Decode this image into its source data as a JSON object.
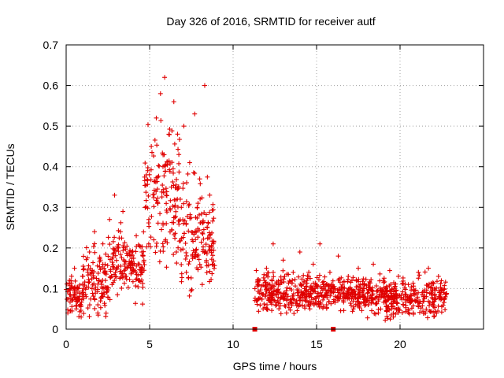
{
  "chart_data": {
    "type": "scatter",
    "title": "Day 326 of 2016, SRMTID for receiver autf",
    "xlabel": "GPS time / hours",
    "ylabel": "SRMTID / TECUs",
    "xlim": [
      0,
      25
    ],
    "ylim": [
      0,
      0.7
    ],
    "xticks": [
      0,
      5,
      10,
      15,
      20
    ],
    "yticks": [
      0,
      0.1,
      0.2,
      0.3,
      0.4,
      0.5,
      0.6,
      0.7
    ],
    "xtick_labels": [
      "0",
      "5",
      "10",
      "15",
      "20"
    ],
    "ytick_labels": [
      "0",
      "0.1",
      "0.2",
      "0.3",
      "0.4",
      "0.5",
      "0.6",
      "0.7"
    ],
    "grid": true,
    "marker": "plus",
    "series": [
      {
        "name": "SRMTID",
        "color": "#e00000",
        "segments": [
          {
            "x_range": [
              0.0,
              1.0
            ],
            "y_median": 0.08,
            "y_spread": 0.04
          },
          {
            "x_range": [
              1.0,
              2.5
            ],
            "y_median": 0.12,
            "y_spread": 0.07
          },
          {
            "x_range": [
              2.5,
              4.7
            ],
            "y_median": 0.16,
            "y_spread": 0.07
          },
          {
            "x_range": [
              4.7,
              6.8
            ],
            "y_median": 0.33,
            "y_spread": 0.15
          },
          {
            "x_range": [
              6.8,
              8.9
            ],
            "y_median": 0.22,
            "y_spread": 0.12
          },
          {
            "x_range": [
              11.3,
              14.5
            ],
            "y_median": 0.09,
            "y_spread": 0.04
          },
          {
            "x_range": [
              14.5,
              18.0
            ],
            "y_median": 0.09,
            "y_spread": 0.04
          },
          {
            "x_range": [
              18.0,
              22.8
            ],
            "y_median": 0.08,
            "y_spread": 0.04
          }
        ],
        "points": [
          [
            0.1,
            0.04
          ],
          [
            0.2,
            0.12
          ],
          [
            0.35,
            0.07
          ],
          [
            0.5,
            0.15
          ],
          [
            0.6,
            0.05
          ],
          [
            0.75,
            0.1
          ],
          [
            0.9,
            0.03
          ],
          [
            1.0,
            0.13
          ],
          [
            1.2,
            0.08
          ],
          [
            1.4,
            0.19
          ],
          [
            1.55,
            0.1
          ],
          [
            1.7,
            0.24
          ],
          [
            1.9,
            0.06
          ],
          [
            2.05,
            0.17
          ],
          [
            2.2,
            0.21
          ],
          [
            2.35,
            0.12
          ],
          [
            2.6,
            0.27
          ],
          [
            2.75,
            0.11
          ],
          [
            2.9,
            0.33
          ],
          [
            3.05,
            0.15
          ],
          [
            3.25,
            0.24
          ],
          [
            3.4,
            0.29
          ],
          [
            3.6,
            0.13
          ],
          [
            3.8,
            0.19
          ],
          [
            4.0,
            0.16
          ],
          [
            4.2,
            0.23
          ],
          [
            4.4,
            0.12
          ],
          [
            4.6,
            0.18
          ],
          [
            4.8,
            0.38
          ],
          [
            4.95,
            0.27
          ],
          [
            5.1,
            0.45
          ],
          [
            5.25,
            0.22
          ],
          [
            5.4,
            0.52
          ],
          [
            5.5,
            0.31
          ],
          [
            5.65,
            0.58
          ],
          [
            5.8,
            0.4
          ],
          [
            5.9,
            0.62
          ],
          [
            6.0,
            0.26
          ],
          [
            6.15,
            0.48
          ],
          [
            6.3,
            0.35
          ],
          [
            6.45,
            0.56
          ],
          [
            6.6,
            0.19
          ],
          [
            6.75,
            0.43
          ],
          [
            6.9,
            0.3
          ],
          [
            7.05,
            0.5
          ],
          [
            7.2,
            0.14
          ],
          [
            7.4,
            0.41
          ],
          [
            7.55,
            0.22
          ],
          [
            7.7,
            0.53
          ],
          [
            7.85,
            0.18
          ],
          [
            8.0,
            0.37
          ],
          [
            8.15,
            0.11
          ],
          [
            8.3,
            0.6
          ],
          [
            8.45,
            0.25
          ],
          [
            8.6,
            0.33
          ],
          [
            8.75,
            0.16
          ],
          [
            11.4,
            0.07
          ],
          [
            11.6,
            0.12
          ],
          [
            11.8,
            0.05
          ],
          [
            12.0,
            0.15
          ],
          [
            12.2,
            0.09
          ],
          [
            12.4,
            0.21
          ],
          [
            12.6,
            0.06
          ],
          [
            12.8,
            0.11
          ],
          [
            13.0,
            0.17
          ],
          [
            13.2,
            0.04
          ],
          [
            13.4,
            0.1
          ],
          [
            13.6,
            0.14
          ],
          [
            13.8,
            0.07
          ],
          [
            14.0,
            0.19
          ],
          [
            14.2,
            0.09
          ],
          [
            14.4,
            0.12
          ],
          [
            14.6,
            0.05
          ],
          [
            14.8,
            0.16
          ],
          [
            15.0,
            0.08
          ],
          [
            15.2,
            0.21
          ],
          [
            15.4,
            0.11
          ],
          [
            15.6,
            0.06
          ],
          [
            15.8,
            0.14
          ],
          [
            16.0,
            0.09
          ],
          [
            16.3,
            0.18
          ],
          [
            16.6,
            0.07
          ],
          [
            16.9,
            0.13
          ],
          [
            17.2,
            0.05
          ],
          [
            17.5,
            0.15
          ],
          [
            17.8,
            0.1
          ],
          [
            18.1,
            0.06
          ],
          [
            18.4,
            0.16
          ],
          [
            18.7,
            0.04
          ],
          [
            19.0,
            0.12
          ],
          [
            19.3,
            0.08
          ],
          [
            19.6,
            0.03
          ],
          [
            19.9,
            0.13
          ],
          [
            20.2,
            0.06
          ],
          [
            20.5,
            0.11
          ],
          [
            20.8,
            0.04
          ],
          [
            21.1,
            0.14
          ],
          [
            21.4,
            0.08
          ],
          [
            21.7,
            0.15
          ],
          [
            22.0,
            0.06
          ],
          [
            22.3,
            0.13
          ],
          [
            22.6,
            0.09
          ]
        ]
      }
    ],
    "annotations": [
      {
        "type": "x-axis-marker",
        "x": 11.3
      },
      {
        "type": "x-axis-marker",
        "x": 16.0
      }
    ]
  }
}
